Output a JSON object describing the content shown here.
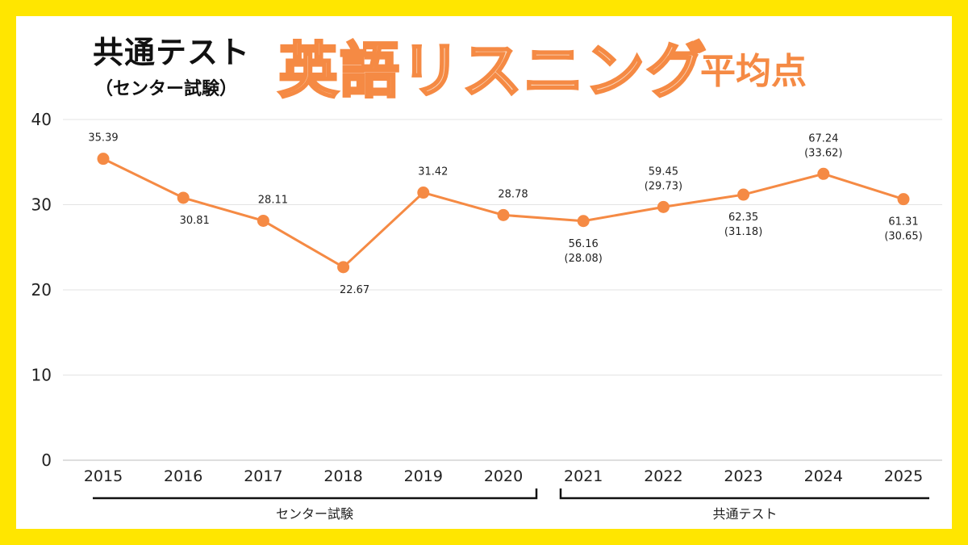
{
  "title": {
    "main": "共通テスト",
    "sub": "（センター試験）",
    "highlight": "英語リスニング",
    "suffix": "平均点"
  },
  "colors": {
    "border": "#FFE600",
    "accent": "#F58A44",
    "grid": "#E3E3E3"
  },
  "chart_data": {
    "type": "line",
    "categories": [
      "2015",
      "2016",
      "2017",
      "2018",
      "2019",
      "2020",
      "2021",
      "2022",
      "2023",
      "2024",
      "2025"
    ],
    "values": [
      35.39,
      30.81,
      28.11,
      22.67,
      31.42,
      28.78,
      28.08,
      29.73,
      31.18,
      33.62,
      30.65
    ],
    "labels": [
      [
        "35.39"
      ],
      [
        "30.81"
      ],
      [
        "28.11"
      ],
      [
        "22.67"
      ],
      [
        "31.42"
      ],
      [
        "28.78"
      ],
      [
        "56.16",
        "(28.08)"
      ],
      [
        "59.45",
        "(29.73)"
      ],
      [
        "62.35",
        "(31.18)"
      ],
      [
        "67.24",
        "(33.62)"
      ],
      [
        "61.31",
        "(30.65)"
      ]
    ],
    "label_positions": [
      "above",
      "below",
      "above",
      "below",
      "above",
      "above",
      "below",
      "above",
      "below",
      "above",
      "below"
    ],
    "yticks": [
      "0",
      "10",
      "20",
      "30",
      "40"
    ],
    "ylim": [
      0,
      40
    ],
    "grid": true,
    "groups": [
      {
        "label": "センター試験",
        "from": 0,
        "to": 5
      },
      {
        "label": "共通テスト",
        "from": 6,
        "to": 10
      }
    ]
  }
}
